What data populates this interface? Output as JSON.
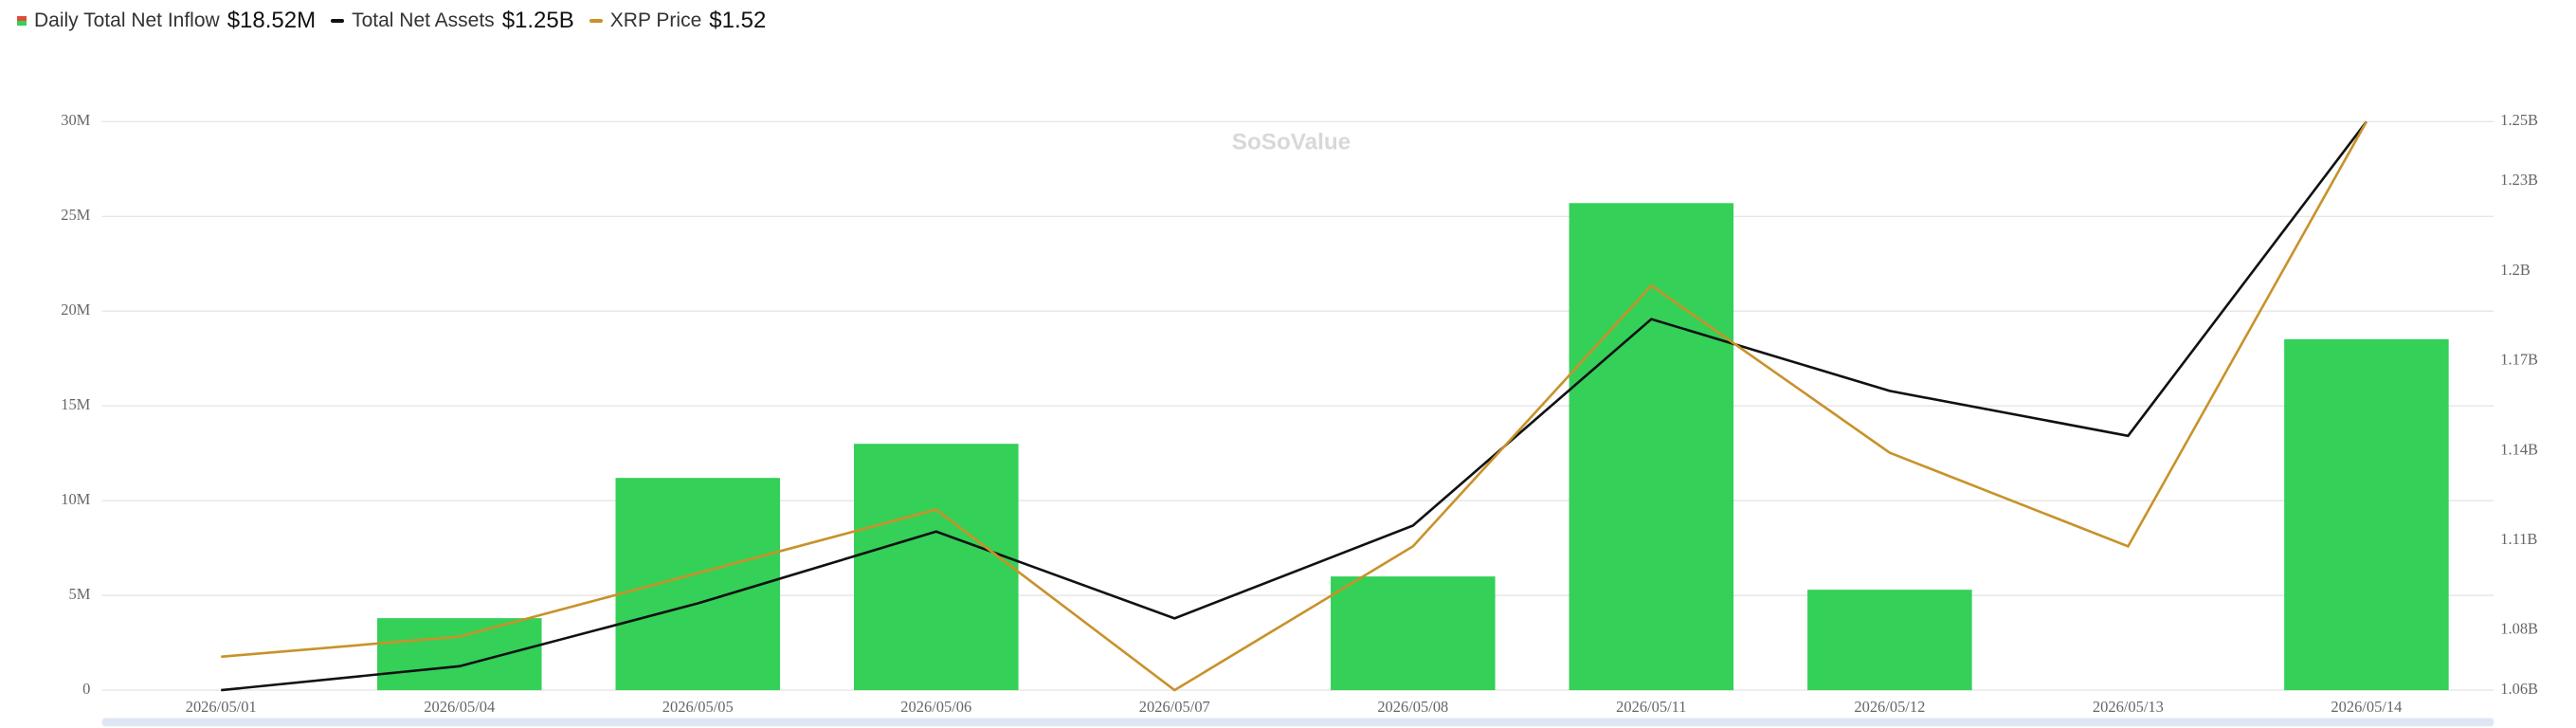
{
  "chart_data": {
    "type": "bar_line",
    "watermark": "SoSoValue",
    "categories": [
      "2026/05/01",
      "2026/05/04",
      "2026/05/05",
      "2026/05/06",
      "2026/05/07",
      "2026/05/08",
      "2026/05/11",
      "2026/05/12",
      "2026/05/13",
      "2026/05/14"
    ],
    "series": [
      {
        "name": "Daily Total Net Inflow",
        "legend_value": "$18.52M",
        "type": "bar",
        "color": "#34d058",
        "axis": "y",
        "values": [
          0,
          3800000,
          11200000,
          13000000,
          0,
          6000000,
          25700000,
          5300000,
          0,
          18520000
        ]
      },
      {
        "name": "Total Net Assets",
        "legend_value": "$1.25B",
        "type": "line",
        "color": "#111111",
        "axis": "y2",
        "values": [
          1060000000,
          1068000000,
          1089000000,
          1113000000,
          1084000000,
          1115000000,
          1184000000,
          1160000000,
          1145000000,
          1250000000
        ]
      },
      {
        "name": "XRP Price",
        "legend_value": "$1.52",
        "type": "line",
        "color": "#c8922a",
        "axis": "y3",
        "values": [
          1.36,
          1.366,
          1.385,
          1.404,
          1.35,
          1.393,
          1.471,
          1.421,
          1.393,
          1.52
        ]
      }
    ],
    "ylim": [
      0,
      30000000
    ],
    "yticks": [
      0,
      {
        "value": 5000000,
        "label": "5M"
      },
      {
        "value": 10000000,
        "label": "10M"
      },
      {
        "value": 15000000,
        "label": "15M"
      },
      {
        "value": 20000000,
        "label": "20M"
      },
      {
        "value": 25000000,
        "label": "25M"
      },
      {
        "value": 30000000,
        "label": "30M"
      }
    ],
    "y2lim": [
      1060000000,
      1250000000
    ],
    "y2ticks": [
      {
        "value": 1060000000,
        "label": "1.06B"
      },
      {
        "value": 1080000000,
        "label": "1.08B"
      },
      {
        "value": 1110000000,
        "label": "1.11B"
      },
      {
        "value": 1140000000,
        "label": "1.14B"
      },
      {
        "value": 1170000000,
        "label": "1.17B"
      },
      {
        "value": 1200000000,
        "label": "1.2B"
      },
      {
        "value": 1230000000,
        "label": "1.23B"
      },
      {
        "value": 1250000000,
        "label": "1.25B"
      }
    ],
    "y3lim": [
      1.35,
      1.52
    ],
    "grid": true
  }
}
